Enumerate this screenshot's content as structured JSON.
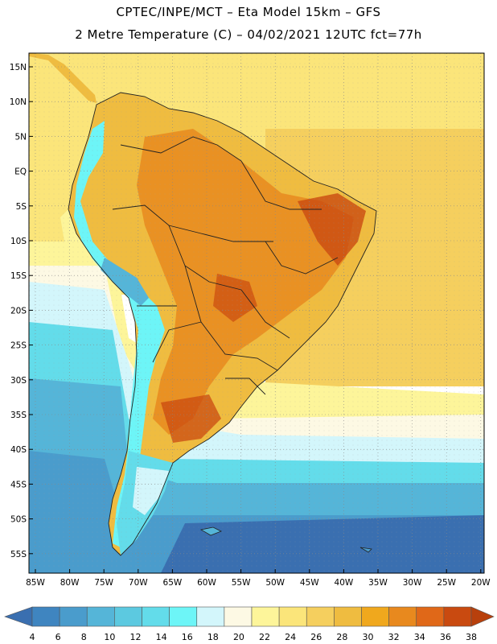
{
  "header": {
    "line1": "CPTEC/INPE/MCT –  Eta Model 15km – GFS",
    "line2": "2 Metre Temperature (C) – 04/02/2021 12UTC fct=77h"
  },
  "latitude_labels": [
    "15N",
    "10N",
    "5N",
    "EQ",
    "5S",
    "10S",
    "15S",
    "20S",
    "25S",
    "30S",
    "35S",
    "40S",
    "45S",
    "50S",
    "55S"
  ],
  "longitude_labels": [
    "85W",
    "80W",
    "75W",
    "70W",
    "65W",
    "60W",
    "55W",
    "50W",
    "45W",
    "40W",
    "35W",
    "30W",
    "25W",
    "20W"
  ],
  "colorbar": {
    "labels": [
      "4",
      "6",
      "8",
      "10",
      "12",
      "14",
      "16",
      "18",
      "20",
      "22",
      "24",
      "26",
      "28",
      "30",
      "32",
      "34",
      "36",
      "38"
    ],
    "colors": [
      "#3a6fb0",
      "#3f85c0",
      "#4a9ccc",
      "#55b5d8",
      "#5cc9e0",
      "#63dcea",
      "#6df5f7",
      "#d3f6fb",
      "#fdf9e4",
      "#fdf59a",
      "#fbe57a",
      "#f5cf5e",
      "#efbc40",
      "#f0a81d",
      "#e8891e",
      "#e06818",
      "#c94a10",
      "#b8400c"
    ]
  }
}
